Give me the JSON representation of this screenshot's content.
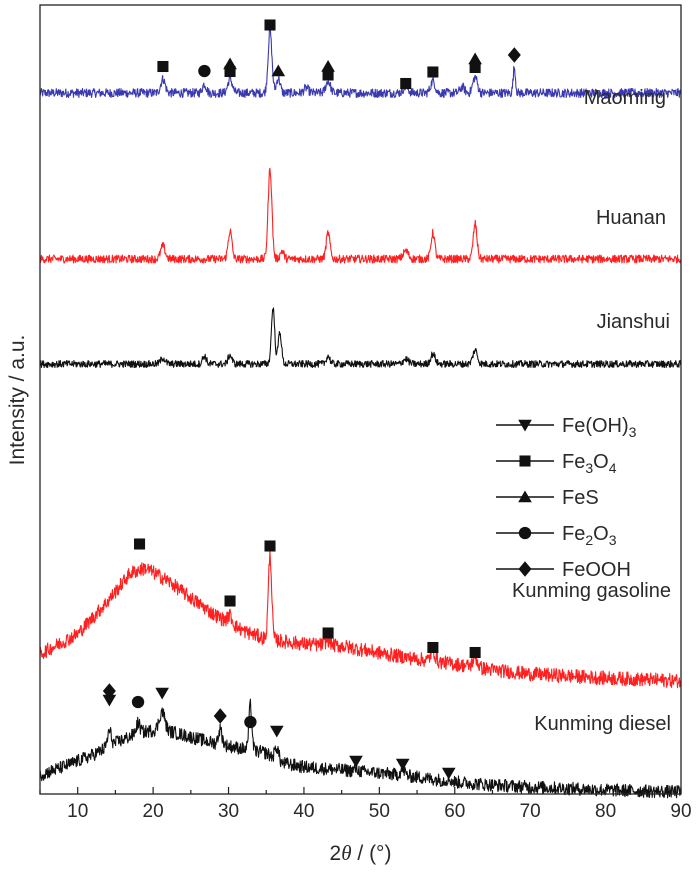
{
  "chart_data": {
    "type": "line",
    "xlabel": {
      "pre": "2",
      "theta": "θ",
      "post": " / (°)"
    },
    "ylabel": "Intensity / a.u.",
    "xlim": [
      5,
      90
    ],
    "xticks": [
      10,
      20,
      30,
      40,
      50,
      60,
      70,
      80,
      90
    ],
    "colors": {
      "blue": "#3a3ab0",
      "red": "#ff2020",
      "black": "#111111"
    },
    "series": [
      {
        "name": "Maoming",
        "color": "#3a3ab0",
        "baseline": 0.06,
        "noise": 0.045,
        "background": [
          [
            5,
            0.06
          ],
          [
            90,
            0.06
          ]
        ],
        "peaks": [
          [
            21.3,
            0.14,
            0.3
          ],
          [
            26.8,
            0.09,
            0.25
          ],
          [
            30.2,
            0.14,
            0.3
          ],
          [
            35.5,
            0.62,
            0.25
          ],
          [
            36.6,
            0.15,
            0.25
          ],
          [
            40.3,
            0.05,
            0.3
          ],
          [
            43.2,
            0.12,
            0.3
          ],
          [
            53.5,
            0.06,
            0.35
          ],
          [
            57.1,
            0.12,
            0.3
          ],
          [
            61.0,
            0.06,
            0.3
          ],
          [
            62.7,
            0.16,
            0.3
          ],
          [
            67.9,
            0.26,
            0.15
          ]
        ],
        "markers": [
          {
            "shape": "square",
            "x": 21.3,
            "y": 0.385
          },
          {
            "shape": "circle",
            "x": 26.8,
            "y": 0.34
          },
          {
            "shape": "triangle-up",
            "x": 30.2,
            "y": 0.41
          },
          {
            "shape": "square",
            "x": 30.2,
            "y": 0.335
          },
          {
            "shape": "square",
            "x": 35.5,
            "y": 0.8
          },
          {
            "shape": "triangle-up",
            "x": 36.6,
            "y": 0.34
          },
          {
            "shape": "triangle-up",
            "x": 43.2,
            "y": 0.385
          },
          {
            "shape": "square",
            "x": 43.2,
            "y": 0.3
          },
          {
            "shape": "square",
            "x": 53.5,
            "y": 0.215
          },
          {
            "shape": "square",
            "x": 57.1,
            "y": 0.33
          },
          {
            "shape": "triangle-up",
            "x": 62.7,
            "y": 0.46
          },
          {
            "shape": "square",
            "x": 62.7,
            "y": 0.375
          },
          {
            "shape": "diamond",
            "x": 67.9,
            "y": 0.5
          }
        ],
        "label": "Maoming"
      },
      {
        "name": "Huanan",
        "color": "#ff2020",
        "baseline": 0.05,
        "noise": 0.04,
        "background": [
          [
            5,
            0.05
          ],
          [
            90,
            0.05
          ]
        ],
        "peaks": [
          [
            21.3,
            0.13,
            0.3
          ],
          [
            30.2,
            0.28,
            0.25
          ],
          [
            35.5,
            0.9,
            0.25
          ],
          [
            37.1,
            0.08,
            0.25
          ],
          [
            43.2,
            0.26,
            0.25
          ],
          [
            53.5,
            0.08,
            0.35
          ],
          [
            57.1,
            0.26,
            0.25
          ],
          [
            62.7,
            0.35,
            0.25
          ]
        ],
        "markers": [],
        "label": "Huanan"
      },
      {
        "name": "Jianshui",
        "color": "#111111",
        "baseline": 0.04,
        "noise": 0.035,
        "background": [
          [
            5,
            0.04
          ],
          [
            90,
            0.04
          ]
        ],
        "peaks": [
          [
            21.3,
            0.06,
            0.3
          ],
          [
            26.8,
            0.08,
            0.25
          ],
          [
            30.2,
            0.09,
            0.25
          ],
          [
            35.9,
            0.56,
            0.22
          ],
          [
            36.8,
            0.32,
            0.22
          ],
          [
            43.2,
            0.08,
            0.25
          ],
          [
            53.5,
            0.05,
            0.35
          ],
          [
            57.1,
            0.1,
            0.3
          ],
          [
            62.7,
            0.14,
            0.3
          ]
        ],
        "markers": [],
        "label": "Jianshui"
      },
      {
        "name": "Kunming gasoline",
        "color": "#ff2020",
        "baseline": 0.0,
        "noise": 0.07,
        "background": [
          [
            5,
            0.32
          ],
          [
            10,
            0.52
          ],
          [
            14,
            0.85
          ],
          [
            17,
            1.13
          ],
          [
            19,
            1.18
          ],
          [
            22,
            1.05
          ],
          [
            25,
            0.88
          ],
          [
            28,
            0.72
          ],
          [
            32,
            0.55
          ],
          [
            35,
            0.47
          ],
          [
            40,
            0.42
          ],
          [
            45,
            0.4
          ],
          [
            50,
            0.33
          ],
          [
            55,
            0.27
          ],
          [
            60,
            0.22
          ],
          [
            65,
            0.16
          ],
          [
            70,
            0.12
          ],
          [
            75,
            0.1
          ],
          [
            80,
            0.08
          ],
          [
            90,
            0.05
          ]
        ],
        "peaks": [
          [
            30.2,
            0.08,
            0.3
          ],
          [
            35.5,
            0.85,
            0.22
          ],
          [
            43.2,
            0.05,
            0.35
          ],
          [
            57.1,
            0.1,
            0.3
          ],
          [
            62.7,
            0.1,
            0.3
          ]
        ],
        "markers": [
          {
            "shape": "square",
            "x": 18.2,
            "y": 1.42
          },
          {
            "shape": "square",
            "x": 30.2,
            "y": 0.85
          },
          {
            "shape": "square",
            "x": 35.5,
            "y": 1.4
          },
          {
            "shape": "square",
            "x": 43.2,
            "y": 0.53
          },
          {
            "shape": "square",
            "x": 57.1,
            "y": 0.385
          },
          {
            "shape": "square",
            "x": 62.7,
            "y": 0.335
          }
        ],
        "label": "Kunming gasoline"
      },
      {
        "name": "Kunming diesel",
        "color": "#111111",
        "baseline": 0.0,
        "noise": 0.065,
        "background": [
          [
            5,
            0.2
          ],
          [
            8,
            0.28
          ],
          [
            12,
            0.4
          ],
          [
            15,
            0.52
          ],
          [
            18,
            0.62
          ],
          [
            21,
            0.66
          ],
          [
            24,
            0.6
          ],
          [
            28,
            0.52
          ],
          [
            32,
            0.46
          ],
          [
            35,
            0.42
          ],
          [
            37,
            0.32
          ],
          [
            40,
            0.28
          ],
          [
            45,
            0.25
          ],
          [
            50,
            0.22
          ],
          [
            55,
            0.18
          ],
          [
            60,
            0.13
          ],
          [
            65,
            0.1
          ],
          [
            70,
            0.08
          ],
          [
            80,
            0.05
          ],
          [
            90,
            0.03
          ]
        ],
        "peaks": [
          [
            14.2,
            0.15,
            0.25
          ],
          [
            18.0,
            0.1,
            0.25
          ],
          [
            21.2,
            0.18,
            0.35
          ],
          [
            28.9,
            0.15,
            0.25
          ],
          [
            32.9,
            0.45,
            0.2
          ],
          [
            36.4,
            0.13,
            0.25
          ],
          [
            46.9,
            0.02,
            0.3
          ],
          [
            53.1,
            0.06,
            0.3
          ],
          [
            59.2,
            0.02,
            0.3
          ]
        ],
        "markers": [
          {
            "shape": "diamond",
            "x": 14.2,
            "y": 1.04
          },
          {
            "shape": "triangle-down",
            "x": 14.2,
            "y": 0.95
          },
          {
            "shape": "circle",
            "x": 18.0,
            "y": 0.93
          },
          {
            "shape": "triangle-down",
            "x": 21.2,
            "y": 1.02
          },
          {
            "shape": "diamond",
            "x": 28.9,
            "y": 0.79
          },
          {
            "shape": "circle",
            "x": 32.9,
            "y": 0.73
          },
          {
            "shape": "triangle-down",
            "x": 36.4,
            "y": 0.64
          },
          {
            "shape": "triangle-down",
            "x": 46.9,
            "y": 0.34
          },
          {
            "shape": "triangle-down",
            "x": 53.1,
            "y": 0.31
          },
          {
            "shape": "triangle-down",
            "x": 59.2,
            "y": 0.22
          }
        ],
        "label": "Kunming diesel"
      }
    ],
    "legend": {
      "position": "right-middle",
      "entries": [
        {
          "shape": "triangle-down",
          "pre": "Fe(OH)",
          "sub": "3",
          "mid": "",
          "sub2": ""
        },
        {
          "shape": "square",
          "pre": "Fe",
          "sub": "3",
          "mid": "O",
          "sub2": "4"
        },
        {
          "shape": "triangle-up",
          "pre": "FeS",
          "sub": "",
          "mid": "",
          "sub2": ""
        },
        {
          "shape": "circle",
          "pre": "Fe",
          "sub": "2",
          "mid": "O",
          "sub2": "3"
        },
        {
          "shape": "diamond",
          "pre": "FeOOH",
          "sub": "",
          "mid": "",
          "sub2": ""
        }
      ]
    }
  }
}
